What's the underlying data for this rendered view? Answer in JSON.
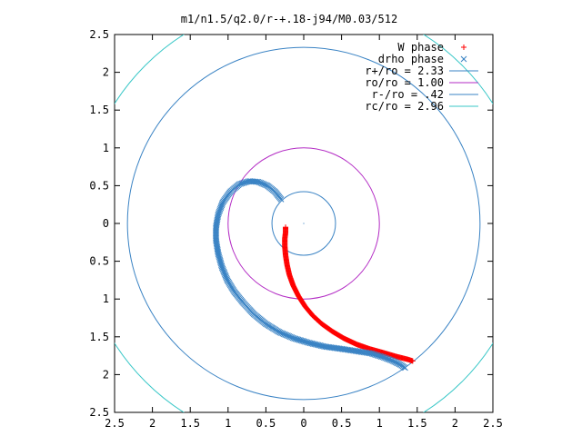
{
  "chart_data": {
    "type": "scatter",
    "title": "m1/n1.5/q2.0/r-+.18-j94/M0.03/512",
    "xlim": [
      -2.5,
      2.5
    ],
    "ylim": [
      -2.5,
      2.5
    ],
    "x_ticks": [
      -2.5,
      -2,
      -1.5,
      -1,
      -0.5,
      0,
      0.5,
      1,
      1.5,
      2,
      2.5
    ],
    "y_ticks": [
      2.5,
      2,
      1.5,
      1,
      0.5,
      0,
      -0.5,
      -1,
      -1.5,
      -2,
      -2.5
    ],
    "x_tick_labels": [
      "2.5",
      "2",
      "1.5",
      "1",
      "0.5",
      "0",
      "0.5",
      "1",
      "1.5",
      "2",
      "2.5"
    ],
    "y_tick_labels": [
      "2.5",
      "2",
      "1.5",
      "1",
      "0.5",
      "0",
      "0.5",
      "1",
      "1.5",
      "2",
      "2.5"
    ],
    "grid": false,
    "legend_position": "top-right",
    "circles": [
      {
        "label": "r+/ro = 2.33",
        "radius": 2.33,
        "color": "#3a83c4"
      },
      {
        "label": "ro/ro = 1.00",
        "radius": 1.0,
        "color": "#b32bc4"
      },
      {
        "label": "r-/ro = .42",
        "radius": 0.42,
        "color": "#3a83c4"
      },
      {
        "label": "rc/ro = 2.96",
        "radius": 2.96,
        "color": "#39c7c7"
      }
    ],
    "series": [
      {
        "name": "W phase",
        "marker": "+",
        "color": "#ff0000",
        "points": [
          [
            -0.24,
            -0.05
          ],
          [
            -0.24,
            -0.12
          ],
          [
            -0.25,
            -0.2
          ],
          [
            -0.25,
            -0.3
          ],
          [
            -0.24,
            -0.42
          ],
          [
            -0.22,
            -0.55
          ],
          [
            -0.19,
            -0.68
          ],
          [
            -0.14,
            -0.82
          ],
          [
            -0.07,
            -0.96
          ],
          [
            0.02,
            -1.1
          ],
          [
            0.12,
            -1.22
          ],
          [
            0.24,
            -1.33
          ],
          [
            0.38,
            -1.43
          ],
          [
            0.53,
            -1.52
          ],
          [
            0.7,
            -1.6
          ],
          [
            0.87,
            -1.66
          ],
          [
            1.05,
            -1.71
          ],
          [
            1.22,
            -1.76
          ],
          [
            1.38,
            -1.8
          ],
          [
            1.44,
            -1.82
          ]
        ]
      },
      {
        "name": "drho phase",
        "marker": "x",
        "color": "#3a83c4",
        "points": [
          [
            -0.3,
            0.32
          ],
          [
            -0.38,
            0.42
          ],
          [
            -0.48,
            0.5
          ],
          [
            -0.6,
            0.55
          ],
          [
            -0.72,
            0.56
          ],
          [
            -0.85,
            0.52
          ],
          [
            -0.97,
            0.42
          ],
          [
            -1.07,
            0.28
          ],
          [
            -1.13,
            0.12
          ],
          [
            -1.16,
            -0.05
          ],
          [
            -1.16,
            -0.22
          ],
          [
            -1.13,
            -0.4
          ],
          [
            -1.08,
            -0.58
          ],
          [
            -1.01,
            -0.75
          ],
          [
            -0.92,
            -0.9
          ],
          [
            -0.8,
            -1.05
          ],
          [
            -0.66,
            -1.2
          ],
          [
            -0.5,
            -1.33
          ],
          [
            -0.32,
            -1.44
          ],
          [
            -0.13,
            -1.52
          ],
          [
            0.07,
            -1.58
          ],
          [
            0.28,
            -1.63
          ],
          [
            0.5,
            -1.66
          ],
          [
            0.7,
            -1.69
          ],
          [
            0.89,
            -1.72
          ],
          [
            1.05,
            -1.77
          ],
          [
            1.18,
            -1.82
          ],
          [
            1.28,
            -1.87
          ],
          [
            1.34,
            -1.91
          ]
        ]
      }
    ]
  }
}
